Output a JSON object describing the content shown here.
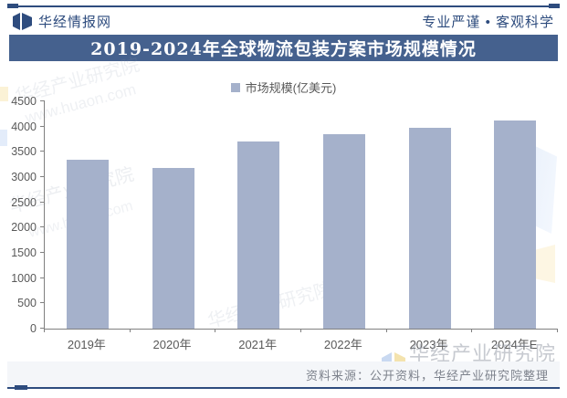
{
  "header": {
    "site_name": "华经情报网",
    "slogan": "专业严谨 • 客观科学"
  },
  "title": "2019-2024年全球物流包装方案市场规模情况",
  "legend": {
    "label": "市场规模(亿美元)",
    "marker_color": "#A5B1CB"
  },
  "chart_data": {
    "type": "bar",
    "title": "2019-2024年全球物流包装方案市场规模情况",
    "series_name": "市场规模(亿美元)",
    "categories": [
      "2019年",
      "2020年",
      "2021年",
      "2022年",
      "2023年",
      "2024年E"
    ],
    "values": [
      3350,
      3190,
      3700,
      3850,
      3970,
      4120
    ],
    "xlabel": "",
    "ylabel": "",
    "ylim": [
      0,
      4500
    ],
    "y_ticks": [
      0,
      500,
      1000,
      1500,
      2000,
      2500,
      3000,
      3500,
      4000,
      4500
    ],
    "grid": false,
    "legend_position": "top-center",
    "bar_color": "#A5B1CB"
  },
  "footer": {
    "source_text": "资料来源：公开资料，华经产业研究院整理"
  },
  "watermarks": {
    "agency_text": "华经产业研究院",
    "site_url": "www.huaon.com",
    "corner_text": "华经产业研究院"
  },
  "colors": {
    "accent_dark_blue": "#2E4C7E",
    "title_band_blue": "#45618E",
    "bar_fill": "#A5B1CB",
    "axis_text_gray": "#595959",
    "source_text_gray": "#7D828C",
    "footer_band_bg": "#F4F6F9"
  }
}
